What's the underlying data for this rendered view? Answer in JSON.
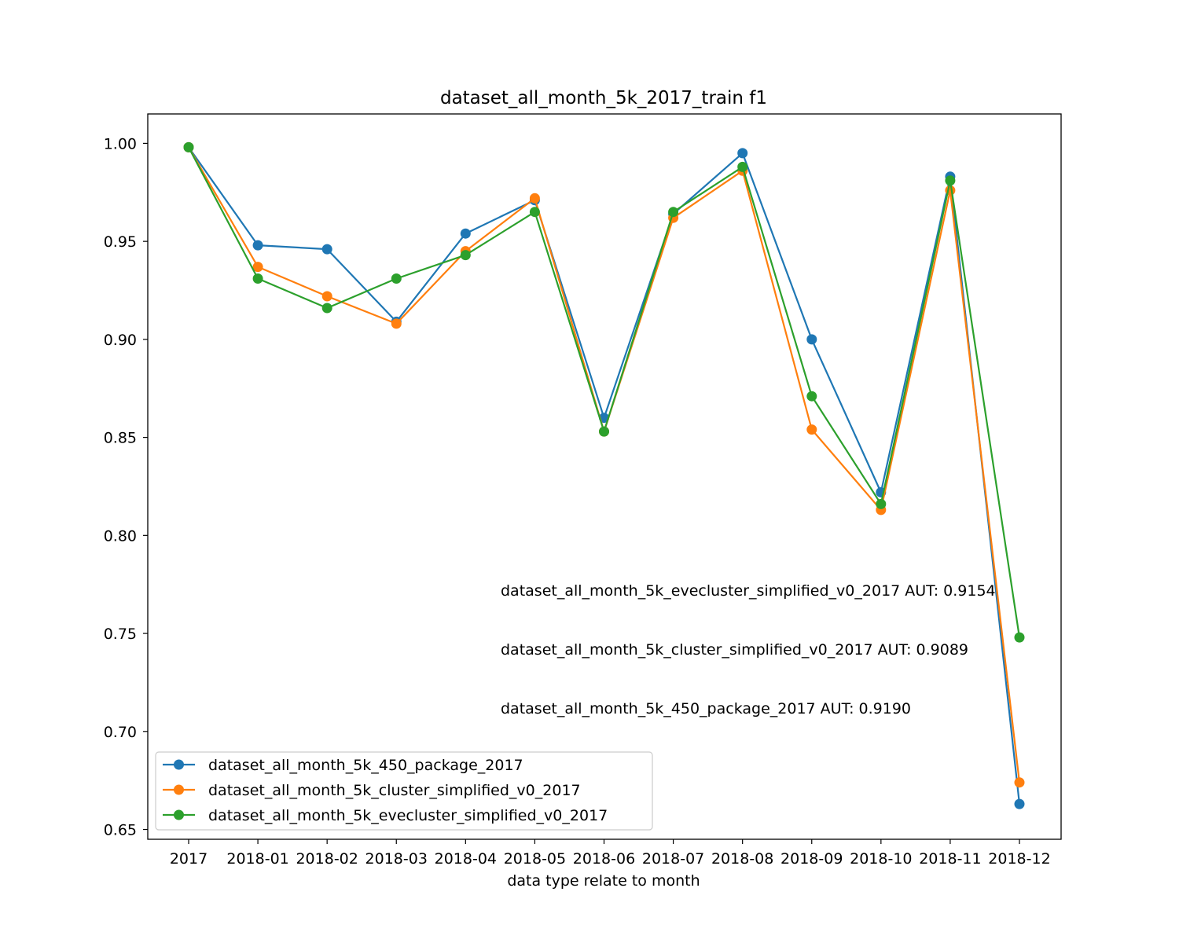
{
  "chart_data": {
    "type": "line",
    "title": "dataset_all_month_5k_2017_train f1",
    "xlabel": "data type relate to month",
    "ylabel": "",
    "categories": [
      "2017",
      "2018-01",
      "2018-02",
      "2018-03",
      "2018-04",
      "2018-05",
      "2018-06",
      "2018-07",
      "2018-08",
      "2018-09",
      "2018-10",
      "2018-11",
      "2018-12"
    ],
    "ylim": [
      0.645,
      1.015
    ],
    "yticks": [
      "0.65",
      "0.70",
      "0.75",
      "0.80",
      "0.85",
      "0.90",
      "0.95",
      "1.00"
    ],
    "grid": false,
    "legend_position": "lower-left",
    "series": [
      {
        "name": "dataset_all_month_5k_450_package_2017",
        "color": "#1f77b4",
        "values": [
          0.998,
          0.948,
          0.946,
          0.909,
          0.954,
          0.971,
          0.86,
          0.964,
          0.995,
          0.9,
          0.822,
          0.983,
          0.663
        ]
      },
      {
        "name": "dataset_all_month_5k_cluster_simplified_v0_2017",
        "color": "#ff7f0e",
        "values": [
          0.998,
          0.937,
          0.922,
          0.908,
          0.945,
          0.972,
          0.853,
          0.962,
          0.986,
          0.854,
          0.813,
          0.976,
          0.674
        ]
      },
      {
        "name": "dataset_all_month_5k_evecluster_simplified_v0_2017",
        "color": "#2ca02c",
        "values": [
          0.998,
          0.931,
          0.916,
          0.931,
          0.943,
          0.965,
          0.853,
          0.965,
          0.988,
          0.871,
          0.816,
          0.981,
          0.748
        ]
      }
    ],
    "annotations": [
      "dataset_all_month_5k_evecluster_simplified_v0_2017 AUT: 0.9154",
      "dataset_all_month_5k_cluster_simplified_v0_2017 AUT: 0.9089",
      "dataset_all_month_5k_450_package_2017 AUT: 0.9190"
    ]
  }
}
